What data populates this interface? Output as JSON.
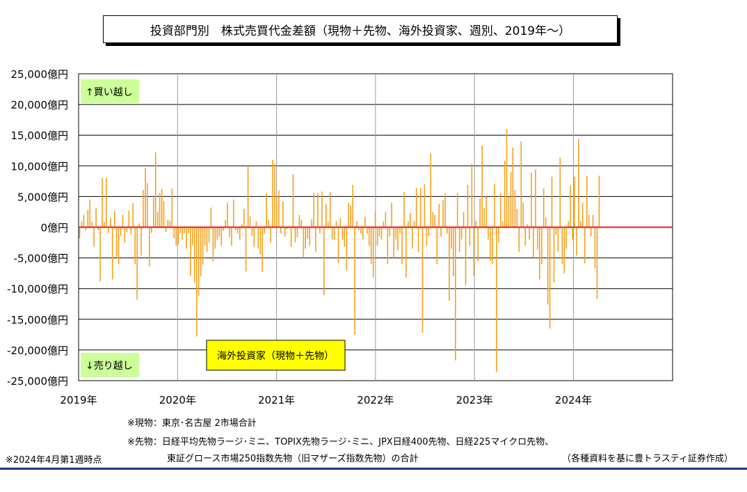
{
  "title": "投資部門別　株式売買代金差額（現物＋先物、海外投資家、週別、2019年～）",
  "chart_data": {
    "type": "bar",
    "title": "投資部門別　株式売買代金差額（現物＋先物、海外投資家、週別、2019年～）",
    "series_label": "海外投資家（現物＋先物）",
    "unit": "億円",
    "ylim": [
      -25000,
      25000
    ],
    "ytick_labels": [
      "25,000億円",
      "20,000億円",
      "15,000億円",
      "10,000億円",
      "5,000億円",
      "0億円",
      "-5,000億円",
      "-10,000億円",
      "-15,000億円",
      "-20,000億円",
      "-25,000億円"
    ],
    "xtick_labels": [
      "2019年",
      "2020年",
      "2021年",
      "2022年",
      "2023年",
      "2024年"
    ],
    "x_start": "2019-01",
    "x_end": "2024-12",
    "bar_color": "#f5a01a",
    "zero_line_color": "#e02020",
    "annot_buy": "↑買い越し",
    "annot_sell": "↓売り越し",
    "annot_bg": "#ccff99",
    "label_bg": "#ffff00",
    "weekly_values": [
      -1800,
      900,
      2000,
      -500,
      2800,
      4500,
      900,
      -3200,
      3200,
      -500,
      -8800,
      8000,
      900,
      8000,
      -900,
      1500,
      -8500,
      2600,
      -5000,
      -6000,
      -1500,
      2000,
      -2500,
      -800,
      2700,
      -1200,
      3900,
      -6000,
      -11800,
      600,
      -4600,
      6100,
      9700,
      7200,
      -6400,
      -900,
      4800,
      12200,
      2500,
      5600,
      6200,
      4300,
      -800,
      1200,
      1000,
      6300,
      -1800,
      -3000,
      -2800,
      -1000,
      -2000,
      -1000,
      -3500,
      -1000,
      -7900,
      -3000,
      -9000,
      -17800,
      -11200,
      -8000,
      -6100,
      -3000,
      -4000,
      -2500,
      3200,
      -5600,
      -3500,
      -2000,
      -1500,
      -3000,
      -600,
      1200,
      4000,
      -1600,
      -3000,
      4500,
      -500,
      -1000,
      -2000,
      500,
      3000,
      -7200,
      10000,
      1800,
      -1400,
      -3200,
      1000,
      -3500,
      -4400,
      -7300,
      -1000,
      5500,
      1200,
      -2500,
      11000,
      10300,
      5000,
      6000,
      -1000,
      4200,
      -1500,
      -300,
      200,
      -3200,
      8600,
      -2500,
      -1600,
      2000,
      1200,
      -5000,
      -3500,
      -1800,
      -3000,
      1300,
      5600,
      -4000,
      5500,
      -1000,
      5800,
      -11100,
      3800,
      900,
      5700,
      -2000,
      -2000,
      1000,
      -5800,
      1500,
      -2000,
      -3200,
      -7000,
      4000,
      3500,
      6900,
      -17500,
      1000,
      -500,
      -1000,
      -2000,
      1700,
      -1000,
      -3000,
      -6000,
      -8200,
      2600,
      -3000,
      -1500,
      -2000,
      900,
      2500,
      -6000,
      -1500,
      4000,
      -5000,
      -2000,
      -3800,
      -1000,
      -6000,
      5700,
      -8200,
      1000,
      2300,
      -3500,
      1000,
      6400,
      -4000,
      6400,
      -17200,
      7000,
      -3000,
      -1500,
      12000,
      2500,
      2000,
      -6000,
      3800,
      -1500,
      4400,
      5500,
      -1000,
      -12000,
      -3500,
      -8000,
      -21700,
      5600,
      -4000,
      -2000,
      2500,
      -9500,
      6900,
      -3000,
      10300,
      -8000,
      1000,
      -5500,
      4700,
      13300,
      3100,
      5000,
      -2000,
      -5500,
      -6000,
      7000,
      -23600,
      -2500,
      5500,
      1000,
      10800,
      16000,
      4900,
      9000,
      13000,
      6100,
      3000,
      -4000,
      14000,
      4000,
      -3000,
      500,
      -2000,
      8900,
      -5000,
      9400,
      -3600,
      -8500,
      -6000,
      6300,
      1600,
      -12600,
      -16500,
      8200,
      -9000,
      -1200,
      -4000,
      11300,
      -6000,
      -7500,
      -3500,
      1000,
      6800,
      -2000,
      8200,
      -4600,
      14400,
      1000,
      4000,
      -5900,
      8300,
      2000,
      -1500,
      2000,
      -6700,
      -11700,
      8400
    ]
  },
  "notes": {
    "n1": "※現物：東京･名古屋 2市場合計",
    "n2a": "※先物：日経平均先物ラージ･ミニ、TOPIX先物ラージ･ミニ、JPX日経400先物、日経225マイクロ先物、",
    "n2b": "東証グロース市場250指数先物（旧マザーズ指数先物）の合計",
    "asof": "※2024年4月第1週時点",
    "source": "（各種資料を基に豊トラスティ証券作成）"
  }
}
